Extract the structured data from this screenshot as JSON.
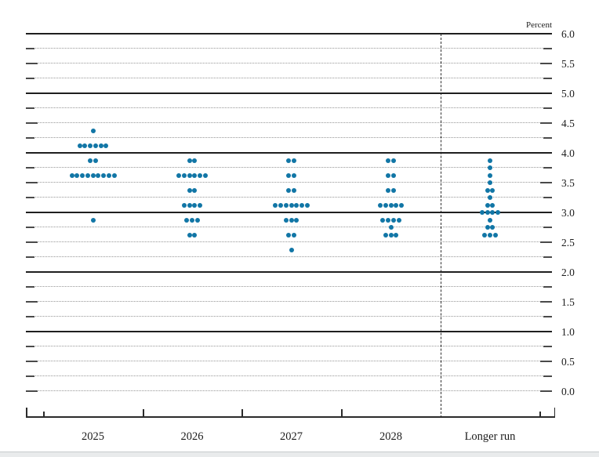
{
  "chart_data": {
    "type": "scatter",
    "variant": "fomc-dot-plot",
    "title": "",
    "unit_label": "Percent",
    "categories": [
      "2025",
      "2026",
      "2027",
      "2028",
      "Longer run"
    ],
    "separator_after_category": "2028",
    "dot_color": "#1176a6",
    "y_axis": {
      "min": 0.0,
      "max": 6.0,
      "grid_interval": 0.25,
      "label_interval": 0.5,
      "tick_labels": [
        "6.0",
        "5.5",
        "5.0",
        "4.5",
        "4.0",
        "3.5",
        "3.0",
        "2.5",
        "2.0",
        "1.5",
        "1.0",
        "0.5",
        "0.0"
      ],
      "solid_line_values": [
        6.0,
        5.0,
        4.0,
        3.0,
        2.0,
        1.0
      ],
      "grid": true,
      "legend": "none"
    },
    "series": [
      {
        "name": "2025",
        "dots": [
          {
            "value": 4.375,
            "count": 1
          },
          {
            "value": 4.125,
            "count": 6
          },
          {
            "value": 3.875,
            "count": 2
          },
          {
            "value": 3.625,
            "count": 9
          },
          {
            "value": 2.875,
            "count": 1
          }
        ]
      },
      {
        "name": "2026",
        "dots": [
          {
            "value": 3.875,
            "count": 2
          },
          {
            "value": 3.625,
            "count": 6
          },
          {
            "value": 3.375,
            "count": 2
          },
          {
            "value": 3.125,
            "count": 4
          },
          {
            "value": 2.875,
            "count": 3
          },
          {
            "value": 2.625,
            "count": 2
          }
        ]
      },
      {
        "name": "2027",
        "dots": [
          {
            "value": 3.875,
            "count": 2
          },
          {
            "value": 3.625,
            "count": 2
          },
          {
            "value": 3.375,
            "count": 2
          },
          {
            "value": 3.125,
            "count": 7
          },
          {
            "value": 2.875,
            "count": 3
          },
          {
            "value": 2.625,
            "count": 2
          },
          {
            "value": 2.375,
            "count": 1
          }
        ]
      },
      {
        "name": "2028",
        "dots": [
          {
            "value": 3.875,
            "count": 2
          },
          {
            "value": 3.625,
            "count": 2
          },
          {
            "value": 3.375,
            "count": 2
          },
          {
            "value": 3.125,
            "count": 5
          },
          {
            "value": 2.875,
            "count": 4
          },
          {
            "value": 2.75,
            "count": 1
          },
          {
            "value": 2.625,
            "count": 3
          }
        ]
      },
      {
        "name": "Longer run",
        "dots": [
          {
            "value": 3.875,
            "count": 1
          },
          {
            "value": 3.75,
            "count": 1
          },
          {
            "value": 3.625,
            "count": 1
          },
          {
            "value": 3.5,
            "count": 1
          },
          {
            "value": 3.375,
            "count": 2
          },
          {
            "value": 3.25,
            "count": 1
          },
          {
            "value": 3.125,
            "count": 2
          },
          {
            "value": 3.0,
            "count": 4
          },
          {
            "value": 2.875,
            "count": 1
          },
          {
            "value": 2.75,
            "count": 2
          },
          {
            "value": 2.625,
            "count": 3
          }
        ]
      }
    ]
  }
}
